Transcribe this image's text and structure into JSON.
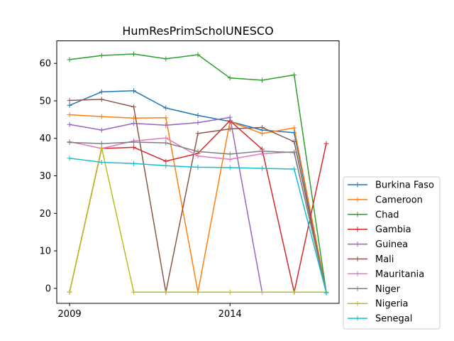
{
  "chart_data": {
    "type": "line",
    "title": "HumResPrimScholUNESCO",
    "xlabel": "",
    "ylabel": "",
    "x": [
      2009,
      2010,
      2011,
      2012,
      2013,
      2014,
      2015,
      2016,
      2017
    ],
    "xlim": [
      2008.6,
      2017.4
    ],
    "ylim": [
      -4,
      66
    ],
    "xticks": [
      2009,
      2014
    ],
    "yticks": [
      0,
      10,
      20,
      30,
      40,
      50,
      60
    ],
    "grid": false,
    "legend_position": "lower-right-outside",
    "series": [
      {
        "name": "Burkina Faso",
        "color": "#1f77b4",
        "values": [
          48.8,
          52.4,
          52.7,
          48.1,
          46.1,
          44.5,
          42.2,
          41.5,
          -1
        ]
      },
      {
        "name": "Cameroon",
        "color": "#ff7f0e",
        "values": [
          46.3,
          45.8,
          45.4,
          45.5,
          -1,
          44.5,
          41.3,
          42.8,
          -1
        ]
      },
      {
        "name": "Chad",
        "color": "#2ca02c",
        "values": [
          61.0,
          62.1,
          62.5,
          61.2,
          62.3,
          56.1,
          55.5,
          56.9,
          -1
        ]
      },
      {
        "name": "Gambia",
        "color": "#d62728",
        "values": [
          -1,
          37.3,
          37.6,
          33.9,
          36.0,
          44.7,
          37.1,
          -1,
          38.6
        ]
      },
      {
        "name": "Guinea",
        "color": "#9467bd",
        "values": [
          43.7,
          42.2,
          44.0,
          43.5,
          44.2,
          45.6,
          -1,
          -1,
          -1
        ]
      },
      {
        "name": "Mali",
        "color": "#8c564b",
        "values": [
          50.1,
          50.4,
          48.4,
          -1,
          41.3,
          42.5,
          42.9,
          39.1,
          -1
        ]
      },
      {
        "name": "Mauritania",
        "color": "#e377c2",
        "values": [
          39.1,
          37.3,
          39.3,
          40.1,
          35.3,
          34.4,
          35.9,
          36.4,
          -1
        ]
      },
      {
        "name": "Niger",
        "color": "#7f7f7f",
        "values": [
          38.9,
          38.6,
          39.0,
          38.8,
          36.5,
          35.8,
          36.6,
          36.2,
          -1
        ]
      },
      {
        "name": "Nigeria",
        "color": "#bcbd22",
        "values": [
          -1,
          37.5,
          -1,
          -1,
          -1,
          -1,
          -1,
          -1,
          -1
        ]
      },
      {
        "name": "Senegal",
        "color": "#17becf",
        "values": [
          34.7,
          33.6,
          33.3,
          32.7,
          32.3,
          32.2,
          32.0,
          31.8,
          -1.2
        ]
      }
    ]
  }
}
